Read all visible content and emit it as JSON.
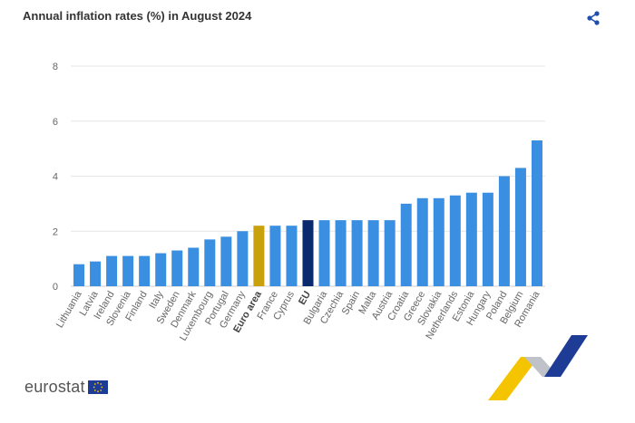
{
  "header": {
    "title": "Annual inflation rates (%) in August 2024"
  },
  "icons": {
    "share": "share-icon",
    "flag": "eu-flag-icon"
  },
  "branding": {
    "logo_text": "eurostat"
  },
  "colors": {
    "default_bar": "#3b8fe0",
    "euro_area": "#c9a10c",
    "eu": "#0a2a6e",
    "grid": "#e6e6e6",
    "logo_blue": "#1e3c96",
    "logo_yellow": "#f5c400"
  },
  "chart_data": {
    "type": "bar",
    "title": "Annual inflation rates (%) in August 2024",
    "xlabel": "",
    "ylabel": "",
    "ylim": [
      0,
      8
    ],
    "yticks": [
      "0",
      "2",
      "4",
      "6",
      "8"
    ],
    "grid": true,
    "categories": [
      "Lithuania",
      "Latvia",
      "Ireland",
      "Slovenia",
      "Finland",
      "Italy",
      "Sweden",
      "Denmark",
      "Luxembourg",
      "Portugal",
      "Germany",
      "Euro area",
      "France",
      "Cyprus",
      "EU",
      "Bulgaria",
      "Czechia",
      "Spain",
      "Malta",
      "Austria",
      "Croatia",
      "Greece",
      "Slovakia",
      "Netherlands",
      "Estonia",
      "Hungary",
      "Poland",
      "Belgium",
      "Romania"
    ],
    "values": [
      0.8,
      0.9,
      1.1,
      1.1,
      1.1,
      1.2,
      1.3,
      1.4,
      1.7,
      1.8,
      2.0,
      2.2,
      2.2,
      2.2,
      2.4,
      2.4,
      2.4,
      2.4,
      2.4,
      2.4,
      3.0,
      3.2,
      3.2,
      3.3,
      3.4,
      3.4,
      4.0,
      4.3,
      5.3
    ],
    "highlights": {
      "Euro area": "euro_area",
      "EU": "eu"
    },
    "bold_labels": [
      "Euro area",
      "EU"
    ]
  }
}
